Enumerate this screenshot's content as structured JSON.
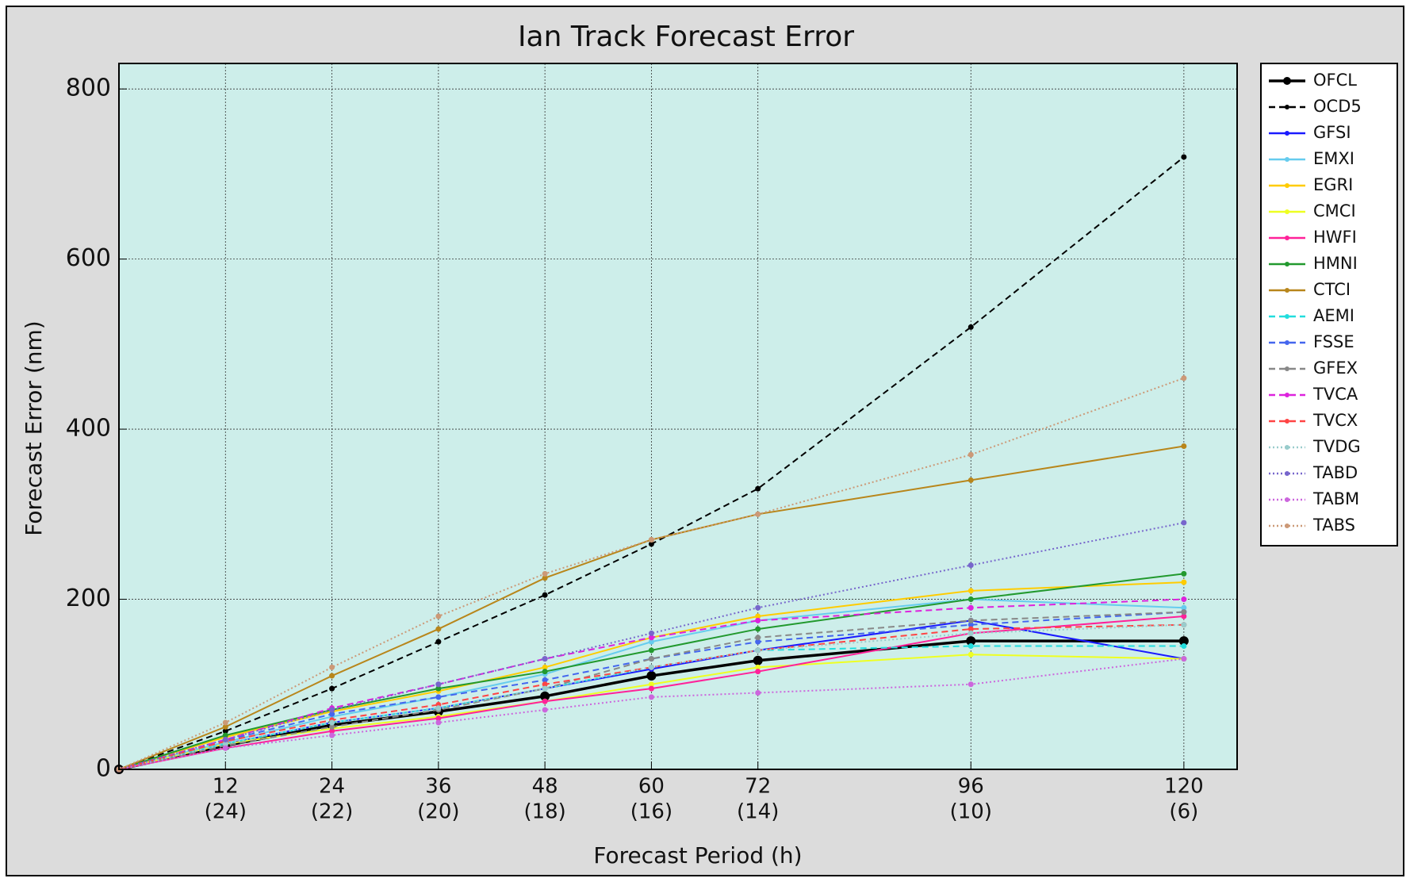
{
  "chart_data": {
    "type": "line",
    "title": "Ian Track Forecast Error",
    "xlabel": "Forecast Period (h)",
    "ylabel": "Forecast Error (nm)",
    "x": [
      0,
      12,
      24,
      36,
      48,
      60,
      72,
      96,
      120
    ],
    "xlim": [
      0,
      126
    ],
    "xticks": [
      12,
      24,
      36,
      48,
      60,
      72,
      96,
      120
    ],
    "xtick_counts": [
      "(24)",
      "(22)",
      "(20)",
      "(18)",
      "(16)",
      "(14)",
      "(10)",
      "(6)"
    ],
    "ylim": [
      0,
      830
    ],
    "yticks": [
      0,
      200,
      400,
      600,
      800
    ],
    "grid": true,
    "background": "#cdeeea",
    "legend": "right",
    "series": [
      {
        "name": "OFCL",
        "color": "#000000",
        "linestyle": "solid",
        "values": [
          0,
          28,
          52,
          68,
          86,
          110,
          128,
          151,
          151
        ]
      },
      {
        "name": "OCD5",
        "color": "#000000",
        "linestyle": "dashed",
        "values": [
          0,
          45,
          95,
          150,
          205,
          265,
          330,
          520,
          720
        ]
      },
      {
        "name": "GFSI",
        "color": "#1a1aff",
        "linestyle": "solid",
        "values": [
          0,
          30,
          55,
          72,
          95,
          118,
          140,
          175,
          130
        ]
      },
      {
        "name": "EMXI",
        "color": "#66ccee",
        "linestyle": "solid",
        "values": [
          0,
          32,
          62,
          85,
          112,
          150,
          175,
          200,
          190
        ]
      },
      {
        "name": "EGRI",
        "color": "#ffcc00",
        "linestyle": "solid",
        "values": [
          0,
          38,
          68,
          92,
          120,
          155,
          180,
          210,
          220
        ]
      },
      {
        "name": "CMCI",
        "color": "#eeff22",
        "linestyle": "solid",
        "values": [
          0,
          30,
          48,
          62,
          80,
          100,
          120,
          135,
          130
        ]
      },
      {
        "name": "HWFI",
        "color": "#ff2299",
        "linestyle": "solid",
        "values": [
          0,
          25,
          45,
          60,
          80,
          95,
          115,
          160,
          180
        ]
      },
      {
        "name": "HMNI",
        "color": "#22992e",
        "linestyle": "solid",
        "values": [
          0,
          40,
          70,
          95,
          115,
          140,
          165,
          200,
          230
        ]
      },
      {
        "name": "CTCI",
        "color": "#b8861b",
        "linestyle": "solid",
        "values": [
          0,
          50,
          110,
          165,
          225,
          270,
          300,
          340,
          380
        ]
      },
      {
        "name": "AEMI",
        "color": "#22dddd",
        "linestyle": "dashed",
        "values": [
          0,
          30,
          55,
          72,
          95,
          120,
          140,
          145,
          145
        ]
      },
      {
        "name": "FSSE",
        "color": "#4466ee",
        "linestyle": "dashed",
        "values": [
          0,
          34,
          65,
          85,
          105,
          130,
          150,
          170,
          185
        ]
      },
      {
        "name": "GFEX",
        "color": "#888888",
        "linestyle": "dashed",
        "values": [
          0,
          28,
          50,
          70,
          95,
          130,
          155,
          175,
          185
        ]
      },
      {
        "name": "TVCA",
        "color": "#dd22dd",
        "linestyle": "dashed",
        "values": [
          0,
          35,
          72,
          100,
          130,
          155,
          175,
          190,
          200
        ]
      },
      {
        "name": "TVCX",
        "color": "#ff4444",
        "linestyle": "dashed",
        "values": [
          0,
          33,
          58,
          76,
          100,
          120,
          140,
          165,
          170
        ]
      },
      {
        "name": "TVDG",
        "color": "#99cccc",
        "linestyle": "dotted",
        "values": [
          0,
          30,
          55,
          72,
          95,
          120,
          140,
          160,
          170
        ]
      },
      {
        "name": "TABD",
        "color": "#7766cc",
        "linestyle": "dotted",
        "values": [
          0,
          35,
          70,
          100,
          130,
          160,
          190,
          240,
          290
        ]
      },
      {
        "name": "TABM",
        "color": "#cc66dd",
        "linestyle": "dotted",
        "values": [
          0,
          25,
          40,
          55,
          70,
          85,
          90,
          100,
          130
        ]
      },
      {
        "name": "TABS",
        "color": "#cc9977",
        "linestyle": "dotted",
        "values": [
          0,
          55,
          120,
          180,
          230,
          270,
          300,
          370,
          460
        ]
      }
    ]
  }
}
